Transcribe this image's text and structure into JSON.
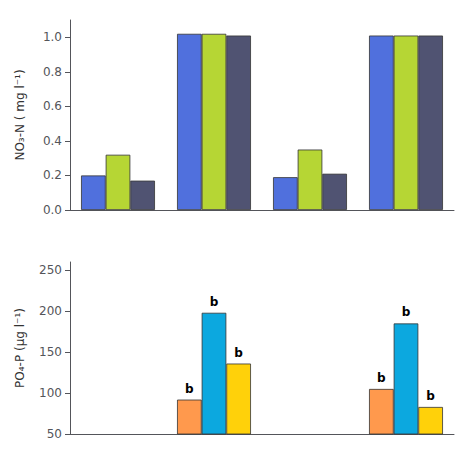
{
  "chart_data": [
    {
      "type": "bar",
      "ylabel": "NO₃-N ( mg l⁻¹)",
      "categories": [
        null,
        null,
        null,
        null
      ],
      "series": [
        {
          "values": [
            0.2,
            1.02,
            0.19,
            1.01
          ]
        },
        {
          "values": [
            0.32,
            1.02,
            0.35,
            1.01
          ]
        },
        {
          "values": [
            0.17,
            1.01,
            0.21,
            1.01
          ]
        }
      ],
      "ylim": [
        0,
        1.1
      ],
      "yticks": [
        {
          "value": 0,
          "label": "0.0"
        },
        0.2,
        0.4,
        0.6,
        0.8,
        {
          "value": 1.0,
          "label": "1.0"
        }
      ],
      "grid": false,
      "tick_labels": "y"
    },
    {
      "type": "bar",
      "ylabel": "PO₄-P (μg l⁻¹)",
      "categories": [
        null,
        null,
        null,
        null
      ],
      "series": [
        {
          "values": [
            null,
            92,
            null,
            105
          ]
        },
        {
          "values": [
            null,
            198,
            null,
            185
          ]
        },
        {
          "values": [
            null,
            136,
            null,
            83
          ]
        }
      ],
      "annotations": [
        {
          "text": "b",
          "series": 0,
          "category": 1
        },
        {
          "text": "b",
          "series": 1,
          "category": 1
        },
        {
          "text": "b",
          "series": 2,
          "category": 1
        },
        {
          "text": "b",
          "series": 0,
          "category": 3
        },
        {
          "text": "b",
          "series": 1,
          "category": 3
        },
        {
          "text": "b",
          "series": 2,
          "category": 3
        }
      ],
      "ylim": [
        50,
        260
      ],
      "yticks": [
        50,
        100,
        150,
        200,
        250
      ],
      "grid": false,
      "tick_labels": "y"
    }
  ]
}
